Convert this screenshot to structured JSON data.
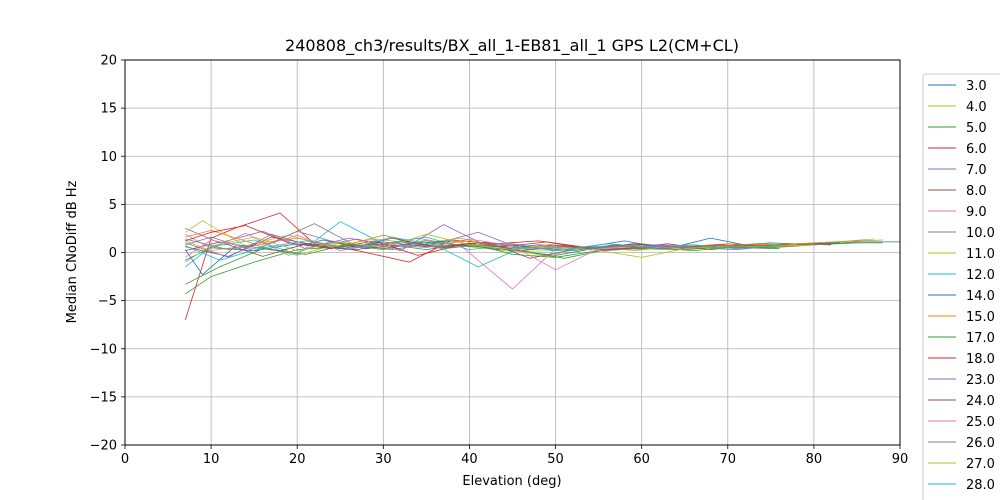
{
  "chart_data": {
    "type": "line",
    "title": "240808_ch3/results/BX_all_1-EB81_all_1 GPS L2(CM+CL)",
    "xlabel": "Elevation (deg)",
    "ylabel": "Median CNoDiff dB Hz",
    "xlim": [
      0,
      90
    ],
    "ylim": [
      -20,
      20
    ],
    "xticks": [
      0,
      10,
      20,
      30,
      40,
      50,
      60,
      70,
      80,
      90
    ],
    "yticks": [
      -20,
      -15,
      -10,
      -5,
      0,
      5,
      10,
      15,
      20
    ],
    "xtick_labels": [
      "0",
      "10",
      "20",
      "30",
      "40",
      "50",
      "60",
      "70",
      "80",
      "90"
    ],
    "ytick_labels": [
      "−20",
      "−15",
      "−10",
      "−5",
      "0",
      "5",
      "10",
      "15",
      "20"
    ],
    "grid": true,
    "legend": "right, outside plot",
    "series": [
      {
        "name": "3.0",
        "color": "#1f77b4",
        "x": [
          7,
          10,
          15,
          20,
          25,
          30,
          35,
          40,
          45,
          50,
          55,
          60,
          65,
          70,
          75,
          80,
          85,
          90
        ],
        "y": [
          -0.8,
          0.5,
          0.2,
          0.9,
          0.4,
          1.1,
          0.6,
          0.8,
          0.2,
          -0.3,
          0.5,
          0.8,
          0.6,
          0.7,
          1.0,
          0.8,
          1.1,
          1.1
        ]
      },
      {
        "name": "4.0",
        "color": "#bcbd22",
        "x": [
          7,
          10,
          15,
          20,
          25,
          30,
          35,
          40,
          45,
          50,
          55,
          60,
          65,
          70,
          75,
          80,
          85
        ],
        "y": [
          1.2,
          0.2,
          0.8,
          -0.3,
          1.0,
          0.4,
          1.3,
          0.6,
          0.1,
          0.2,
          0.6,
          0.3,
          0.7,
          0.5,
          0.8,
          1.0,
          1.2
        ]
      },
      {
        "name": "5.0",
        "color": "#2ca02c",
        "x": [
          7,
          10,
          15,
          20,
          25,
          30,
          35,
          40,
          45,
          50,
          55,
          60,
          65,
          70,
          75,
          80,
          85,
          88
        ],
        "y": [
          -4.3,
          -2.5,
          -1.0,
          0.3,
          0.6,
          0.9,
          0.3,
          1.0,
          -0.2,
          -0.5,
          0.2,
          0.4,
          0.3,
          0.6,
          0.5,
          0.8,
          1.0,
          1.0
        ]
      },
      {
        "name": "6.0",
        "color": "#d62728",
        "x": [
          7,
          10,
          13,
          18,
          22,
          27,
          33,
          38,
          43,
          48,
          53,
          58,
          63,
          68,
          73,
          78,
          83
        ],
        "y": [
          -7.0,
          1.5,
          2.6,
          4.1,
          0.9,
          0.2,
          -1.0,
          1.3,
          0.9,
          1.2,
          0.6,
          0.4,
          0.9,
          0.3,
          0.8,
          0.7,
          1.1
        ]
      },
      {
        "name": "7.0",
        "color": "#9467bd",
        "x": [
          7,
          11,
          16,
          21,
          26,
          31,
          36,
          41,
          46,
          51,
          56,
          61,
          66,
          71,
          76,
          81
        ],
        "y": [
          2.5,
          1.0,
          2.2,
          0.4,
          1.5,
          0.6,
          0.9,
          2.1,
          0.4,
          0.8,
          0.2,
          0.6,
          0.5,
          0.3,
          0.7,
          0.9
        ]
      },
      {
        "name": "8.0",
        "color": "#8c564b",
        "x": [
          7,
          12,
          17,
          22,
          27,
          32,
          37,
          42,
          47,
          52,
          57,
          62,
          67,
          72,
          77,
          82
        ],
        "y": [
          0.6,
          -0.4,
          1.6,
          0.8,
          0.3,
          1.2,
          0.5,
          1.1,
          -0.6,
          0.3,
          0.8,
          0.4,
          0.6,
          0.5,
          0.9,
          0.8
        ]
      },
      {
        "name": "9.0",
        "color": "#e377c2",
        "x": [
          7,
          10,
          14,
          19,
          24,
          29,
          34,
          39,
          45,
          50,
          55,
          60,
          65,
          70,
          75
        ],
        "y": [
          1.9,
          0.4,
          2.0,
          -0.3,
          1.2,
          0.5,
          1.5,
          0.7,
          -3.8,
          0.4,
          0.6,
          0.3,
          0.7,
          0.5,
          0.4
        ]
      },
      {
        "name": "10.0",
        "color": "#7f7f7f",
        "x": [
          7,
          10,
          15,
          20,
          25,
          30,
          35,
          40,
          45,
          50,
          55,
          60,
          65,
          70
        ],
        "y": [
          0.8,
          1.6,
          0.2,
          2.2,
          0.9,
          0.3,
          1.2,
          0.6,
          0.9,
          0.2,
          0.5,
          0.8,
          0.4,
          0.6
        ]
      },
      {
        "name": "11.0",
        "color": "#bcbd22",
        "x": [
          7,
          9,
          14,
          19,
          24,
          29,
          34,
          39,
          44,
          49,
          54,
          59,
          64,
          69,
          74,
          79,
          84,
          87
        ],
        "y": [
          2.1,
          3.3,
          0.7,
          1.8,
          0.6,
          1.4,
          0.9,
          1.5,
          0.5,
          -0.4,
          0.7,
          0.2,
          0.6,
          0.4,
          0.9,
          0.7,
          1.2,
          1.4
        ]
      },
      {
        "name": "12.0",
        "color": "#17becf",
        "x": [
          7,
          10,
          15,
          20,
          25,
          30,
          35,
          40,
          45,
          50,
          55,
          60,
          65,
          70
        ],
        "y": [
          -1.5,
          0.6,
          1.3,
          -0.2,
          3.2,
          0.9,
          1.6,
          0.3,
          0.8,
          0.2,
          0.6,
          0.9,
          0.5,
          0.7
        ]
      },
      {
        "name": "14.0",
        "color": "#1f77b4",
        "x": [
          7,
          9,
          13,
          18,
          23,
          28,
          33,
          38,
          43,
          48,
          53,
          58,
          63,
          68,
          73,
          78,
          83
        ],
        "y": [
          0.3,
          -2.3,
          0.8,
          0.2,
          1.3,
          0.4,
          0.9,
          1.2,
          0.3,
          0.8,
          0.5,
          1.2,
          0.4,
          1.5,
          0.6,
          0.9,
          1.0
        ]
      },
      {
        "name": "15.0",
        "color": "#ff7f0e",
        "x": [
          7,
          10,
          15,
          20,
          25,
          30,
          35,
          40,
          45,
          50,
          55,
          60,
          65,
          70,
          75,
          80,
          85,
          88
        ],
        "y": [
          1.6,
          2.3,
          0.9,
          1.5,
          0.6,
          1.8,
          0.7,
          1.2,
          0.3,
          0.9,
          0.4,
          0.8,
          0.6,
          0.9,
          0.7,
          1.0,
          1.2,
          1.3
        ]
      },
      {
        "name": "17.0",
        "color": "#2ca02c",
        "x": [
          7,
          11,
          16,
          21,
          26,
          31,
          36,
          41,
          46,
          51,
          56,
          61,
          66,
          71,
          76
        ],
        "y": [
          -3.3,
          -1.5,
          0.4,
          -0.2,
          0.9,
          0.3,
          1.0,
          0.6,
          0.2,
          -0.6,
          0.3,
          0.5,
          0.2,
          0.6,
          0.4
        ]
      },
      {
        "name": "18.0",
        "color": "#d62728",
        "x": [
          7,
          10,
          14,
          19,
          24,
          29,
          34,
          39,
          44,
          49,
          54,
          59,
          64,
          69,
          74
        ],
        "y": [
          1.2,
          2.1,
          2.8,
          1.0,
          0.4,
          1.2,
          -0.3,
          0.8,
          0.6,
          1.1,
          0.4,
          0.9,
          0.5,
          0.8,
          0.6
        ]
      },
      {
        "name": "23.0",
        "color": "#9467bd",
        "x": [
          7,
          12,
          17,
          22,
          27,
          32,
          37,
          42,
          47,
          52,
          57,
          62,
          67,
          72
        ],
        "y": [
          1.0,
          -0.5,
          1.9,
          0.6,
          1.4,
          0.2,
          2.9,
          0.7,
          0.3,
          0.6,
          0.4,
          0.8,
          0.5,
          0.7
        ]
      },
      {
        "name": "24.0",
        "color": "#8c564b",
        "x": [
          7,
          11,
          16,
          21,
          26,
          31,
          36,
          41,
          46,
          51,
          56,
          61,
          66,
          71,
          76,
          81
        ],
        "y": [
          0.2,
          1.1,
          -0.4,
          0.9,
          0.3,
          1.5,
          0.6,
          1.0,
          0.2,
          0.7,
          0.3,
          0.6,
          0.4,
          0.8,
          0.6,
          0.9
        ]
      },
      {
        "name": "25.0",
        "color": "#e377c2",
        "x": [
          7,
          10,
          15,
          20,
          25,
          30,
          35,
          40,
          45,
          50,
          55,
          60,
          65
        ],
        "y": [
          -0.5,
          1.3,
          0.4,
          1.8,
          0.2,
          0.9,
          0.5,
          1.4,
          0.7,
          -1.8,
          0.4,
          0.6,
          0.5
        ]
      },
      {
        "name": "26.0",
        "color": "#7f7f7f",
        "x": [
          7,
          12,
          17,
          22,
          27,
          32,
          37,
          42,
          47,
          52,
          57,
          62,
          67,
          72,
          77,
          82
        ],
        "y": [
          1.4,
          0.3,
          1.0,
          3.0,
          0.6,
          1.1,
          0.4,
          0.9,
          0.5,
          0.2,
          0.7,
          0.4,
          0.6,
          0.5,
          0.7,
          0.9
        ]
      },
      {
        "name": "27.0",
        "color": "#bcbd22",
        "x": [
          7,
          10,
          15,
          20,
          25,
          30,
          35,
          40,
          45,
          50,
          55,
          60,
          65,
          70,
          75,
          80
        ],
        "y": [
          -1.0,
          0.7,
          1.6,
          0.2,
          1.1,
          0.5,
          1.9,
          0.8,
          0.3,
          0.6,
          0.2,
          -0.5,
          0.4,
          0.7,
          0.6,
          0.8
        ]
      },
      {
        "name": "28.0",
        "color": "#17becf",
        "x": [
          7,
          11,
          16,
          21,
          26,
          31,
          36,
          41,
          46,
          51,
          56,
          61,
          66,
          71,
          76
        ],
        "y": [
          0.7,
          -0.8,
          0.5,
          1.2,
          0.4,
          1.6,
          0.8,
          -1.5,
          0.5,
          0.3,
          0.9,
          0.6,
          0.8,
          0.4,
          0.7
        ]
      }
    ]
  }
}
